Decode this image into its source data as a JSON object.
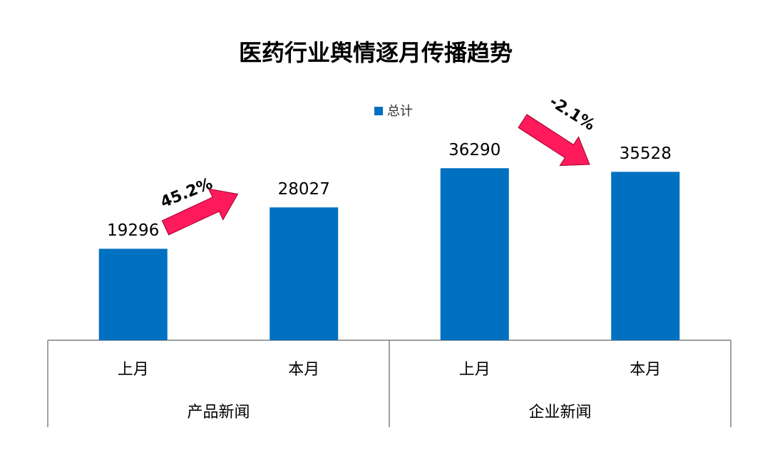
{
  "chart_data": {
    "type": "bar",
    "title": "医药行业舆情逐月传播趋势",
    "categories": [
      "上月",
      "本月",
      "上月",
      "本月"
    ],
    "groups": [
      "产品新闻",
      "企业新闻"
    ],
    "series": [
      {
        "name": "总计",
        "color": "#0070c0",
        "values": [
          19296,
          28027,
          36290,
          35528
        ]
      }
    ],
    "annotations": [
      "45.2%",
      "-2.1%"
    ],
    "legend": "top"
  }
}
